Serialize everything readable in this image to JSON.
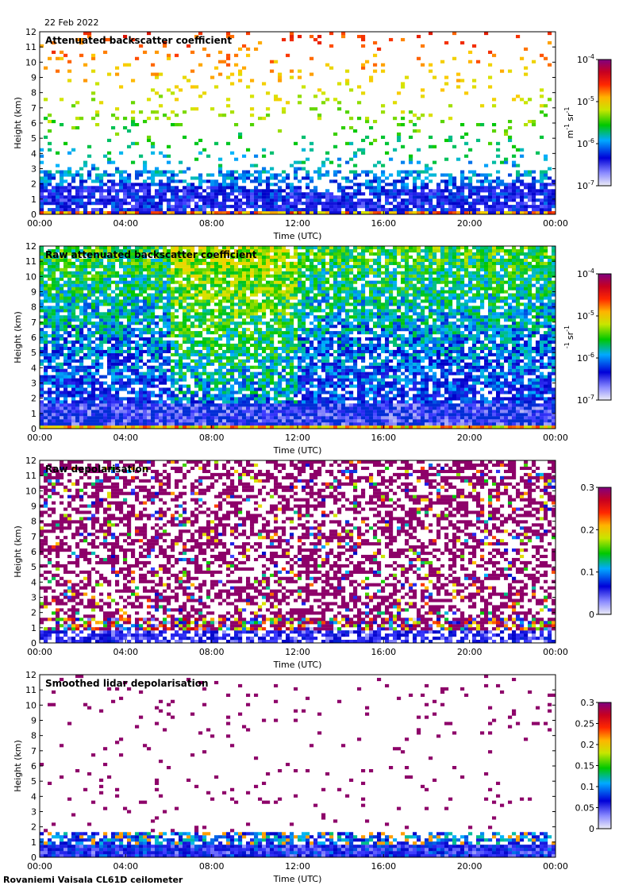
{
  "date": "22 Feb 2022",
  "footer": "Rovaniemi Vaisala CL61D ceilometer",
  "xlabel": "Time (UTC)",
  "ylabel": "Height (km)",
  "x_ticks": [
    "00:00",
    "04:00",
    "08:00",
    "12:00",
    "16:00",
    "20:00",
    "00:00"
  ],
  "y_ticks": [
    "0",
    "1",
    "2",
    "3",
    "4",
    "5",
    "6",
    "7",
    "8",
    "9",
    "10",
    "11",
    "12"
  ],
  "colors": {
    "colormap": [
      "#e6e6f2",
      "#3a3aff",
      "#0000c8",
      "#00b4ff",
      "#00c800",
      "#d2e600",
      "#ffc800",
      "#ff3c00",
      "#c80000",
      "#800080"
    ],
    "background_missing": "#ffffff",
    "low_gray": "#d8d8d8"
  },
  "chart_data": [
    {
      "type": "heatmap",
      "title": "Attenuated backscatter coefficient",
      "xlabel": "Time (UTC)",
      "ylabel": "Height (km)",
      "xlim": [
        "00:00",
        "24:00"
      ],
      "ylim": [
        0,
        12
      ],
      "colorbar": {
        "scale": "log",
        "range": [
          1e-07,
          0.0001
        ],
        "ticks": [
          {
            "base": "10",
            "exp": "-4"
          },
          {
            "base": "10",
            "exp": "-5"
          },
          {
            "base": "10",
            "exp": "-6"
          },
          {
            "base": "10",
            "exp": "-7"
          }
        ],
        "unit": {
          "a": "m",
          "a_exp": "-1",
          "b": "sr",
          "b_exp": "-1"
        },
        "colormap": "rainbow-purple"
      }
    },
    {
      "type": "heatmap",
      "title": "Raw attenuated backscatter coefficient",
      "xlabel": "Time (UTC)",
      "ylabel": "Height (km)",
      "xlim": [
        "00:00",
        "24:00"
      ],
      "ylim": [
        0,
        12
      ],
      "colorbar": {
        "scale": "log",
        "range": [
          1e-07,
          0.0001
        ],
        "ticks": [
          {
            "base": "10",
            "exp": "-4"
          },
          {
            "base": "10",
            "exp": "-5"
          },
          {
            "base": "10",
            "exp": "-6"
          },
          {
            "base": "10",
            "exp": "-7"
          }
        ],
        "unit": {
          "a": "",
          "a_exp": "-1",
          "b": "sr",
          "b_exp": "-1"
        },
        "colormap": "rainbow-purple"
      }
    },
    {
      "type": "heatmap",
      "title": "Raw depolarisation",
      "xlabel": "Time (UTC)",
      "ylabel": "Height (km)",
      "xlim": [
        "00:00",
        "24:00"
      ],
      "ylim": [
        0,
        12
      ],
      "colorbar": {
        "scale": "linear",
        "range": [
          0,
          0.3
        ],
        "ticks": [
          {
            "base": "0.3"
          },
          {
            "base": "0.2"
          },
          {
            "base": "0.1"
          },
          {
            "base": "0"
          }
        ],
        "colormap": "rainbow-purple"
      }
    },
    {
      "type": "heatmap",
      "title": "Smoothed lidar depolarisation",
      "xlabel": "Time (UTC)",
      "ylabel": "Height (km)",
      "xlim": [
        "00:00",
        "24:00"
      ],
      "ylim": [
        0,
        12
      ],
      "colorbar": {
        "scale": "linear",
        "range": [
          0,
          0.3
        ],
        "ticks": [
          {
            "base": "0.3"
          },
          {
            "base": "0.25"
          },
          {
            "base": "0.2"
          },
          {
            "base": "0.15"
          },
          {
            "base": "0.1"
          },
          {
            "base": "0.05"
          },
          {
            "base": "0"
          }
        ],
        "colormap": "rainbow-purple"
      }
    }
  ]
}
